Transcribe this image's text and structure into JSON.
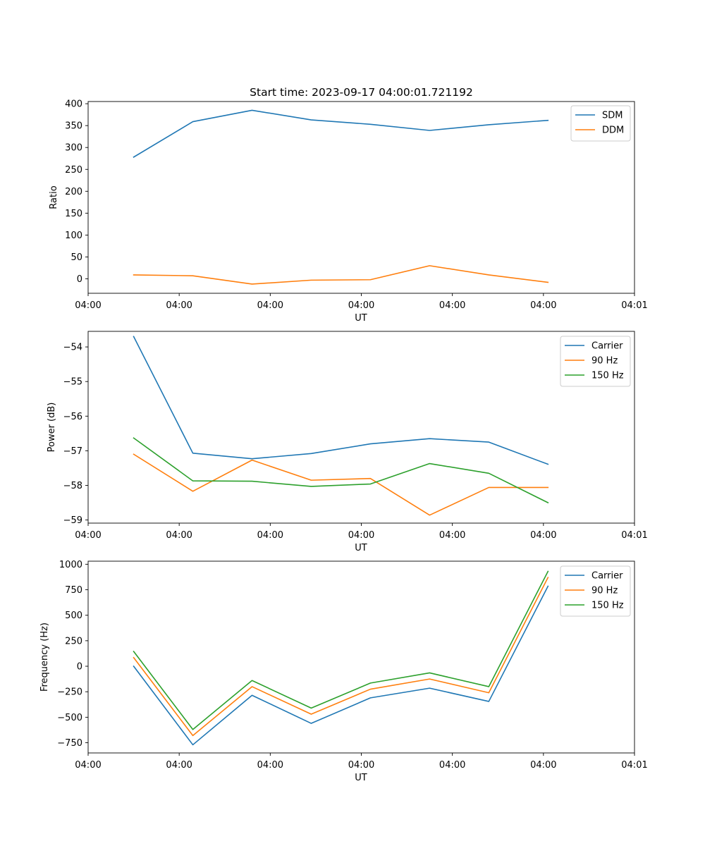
{
  "figure": {
    "title": "Start time: 2023-09-17 04:00:01.721192"
  },
  "chart_data": [
    {
      "type": "line",
      "ylabel": "Ratio",
      "xlabel": "UT",
      "x": [
        0.5,
        1.15,
        1.8,
        2.45,
        3.1,
        3.75,
        4.4,
        5.05
      ],
      "xlim": [
        0,
        6
      ],
      "ylim": [
        -33,
        405
      ],
      "x_ticks": [
        0,
        1,
        2,
        3,
        4,
        5,
        6
      ],
      "x_tick_labels": [
        "04:00",
        "04:00",
        "04:00",
        "04:00",
        "04:00",
        "04:00",
        "04:01"
      ],
      "y_ticks": [
        0,
        50,
        100,
        150,
        200,
        250,
        300,
        350,
        400
      ],
      "y_tick_labels": [
        "0",
        "50",
        "100",
        "150",
        "200",
        "250",
        "300",
        "350",
        "400"
      ],
      "legend_position": "top-right",
      "series": [
        {
          "name": "SDM",
          "color": "#1f77b4",
          "values": [
            278,
            359,
            385,
            363,
            353,
            339,
            352,
            362
          ]
        },
        {
          "name": "DDM",
          "color": "#ff7f0e",
          "values": [
            9,
            7,
            -12,
            -3,
            -2,
            30,
            9,
            -8
          ]
        }
      ]
    },
    {
      "type": "line",
      "ylabel": "Power (dB)",
      "xlabel": "UT",
      "x": [
        0.5,
        1.15,
        1.8,
        2.45,
        3.1,
        3.75,
        4.4,
        5.05
      ],
      "xlim": [
        0,
        6
      ],
      "ylim": [
        -59.09,
        -53.55
      ],
      "x_ticks": [
        0,
        1,
        2,
        3,
        4,
        5,
        6
      ],
      "x_tick_labels": [
        "04:00",
        "04:00",
        "04:00",
        "04:00",
        "04:00",
        "04:00",
        "04:01"
      ],
      "y_ticks": [
        -54,
        -55,
        -56,
        -57,
        -58,
        -59
      ],
      "y_tick_labels": [
        "−54",
        "−55",
        "−56",
        "−57",
        "−58",
        "−59"
      ],
      "legend_position": "top-right",
      "series": [
        {
          "name": "Carrier",
          "color": "#1f77b4",
          "values": [
            -53.7,
            -57.07,
            -57.23,
            -57.08,
            -56.8,
            -56.65,
            -56.75,
            -57.39
          ]
        },
        {
          "name": "90 Hz",
          "color": "#ff7f0e",
          "values": [
            -57.1,
            -58.17,
            -57.27,
            -57.85,
            -57.8,
            -58.86,
            -58.06,
            -58.06
          ]
        },
        {
          "name": "150 Hz",
          "color": "#2ca02c",
          "values": [
            -56.63,
            -57.87,
            -57.88,
            -58.03,
            -57.96,
            -57.37,
            -57.65,
            -58.5
          ]
        }
      ]
    },
    {
      "type": "line",
      "ylabel": "Frequency (Hz)",
      "xlabel": "UT",
      "x": [
        0.5,
        1.15,
        1.8,
        2.45,
        3.1,
        3.75,
        4.4,
        5.05
      ],
      "xlim": [
        0,
        6
      ],
      "ylim": [
        -850,
        1030
      ],
      "x_ticks": [
        0,
        1,
        2,
        3,
        4,
        5,
        6
      ],
      "x_tick_labels": [
        "04:00",
        "04:00",
        "04:00",
        "04:00",
        "04:00",
        "04:00",
        "04:01"
      ],
      "y_ticks": [
        1000,
        750,
        500,
        250,
        0,
        -250,
        -500,
        -750
      ],
      "y_tick_labels": [
        "1000",
        "750",
        "500",
        "250",
        "0",
        "−250",
        "−500",
        "−750"
      ],
      "legend_position": "top-right",
      "series": [
        {
          "name": "Carrier",
          "color": "#1f77b4",
          "values": [
            0,
            -770,
            -285,
            -560,
            -310,
            -215,
            -345,
            785
          ]
        },
        {
          "name": "90 Hz",
          "color": "#ff7f0e",
          "values": [
            85,
            -680,
            -200,
            -470,
            -225,
            -125,
            -260,
            870
          ]
        },
        {
          "name": "150 Hz",
          "color": "#2ca02c",
          "values": [
            145,
            -620,
            -140,
            -410,
            -165,
            -65,
            -200,
            930
          ]
        }
      ]
    }
  ]
}
